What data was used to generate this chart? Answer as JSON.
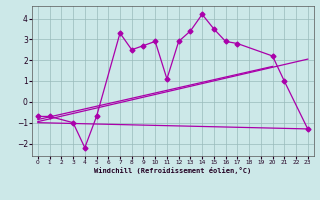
{
  "main_line_x": [
    0,
    1,
    3,
    4,
    5,
    7,
    8,
    9,
    10,
    11,
    12,
    13,
    14,
    15,
    16,
    17,
    20,
    21,
    23
  ],
  "main_line_y": [
    -0.7,
    -0.7,
    -1.0,
    -2.2,
    -0.7,
    3.3,
    2.5,
    2.7,
    2.9,
    1.1,
    2.9,
    3.4,
    4.2,
    3.5,
    2.9,
    2.8,
    2.2,
    1.0,
    -1.3
  ],
  "trend1_x": [
    0,
    20
  ],
  "trend1_y": [
    -0.85,
    1.7
  ],
  "trend2_x": [
    0,
    23
  ],
  "trend2_y": [
    -0.95,
    2.05
  ],
  "flat_line_x": [
    0,
    23
  ],
  "flat_line_y": [
    -1.0,
    -1.3
  ],
  "bg_color": "#cce8e8",
  "line_color": "#aa00aa",
  "grid_color": "#99bbbb",
  "xlabel": "Windchill (Refroidissement éolien,°C)",
  "xlim": [
    -0.5,
    23.5
  ],
  "ylim": [
    -2.6,
    4.6
  ],
  "yticks": [
    -2,
    -1,
    0,
    1,
    2,
    3,
    4
  ],
  "xticks": [
    0,
    1,
    2,
    3,
    4,
    5,
    6,
    7,
    8,
    9,
    10,
    11,
    12,
    13,
    14,
    15,
    16,
    17,
    18,
    19,
    20,
    21,
    22,
    23
  ]
}
